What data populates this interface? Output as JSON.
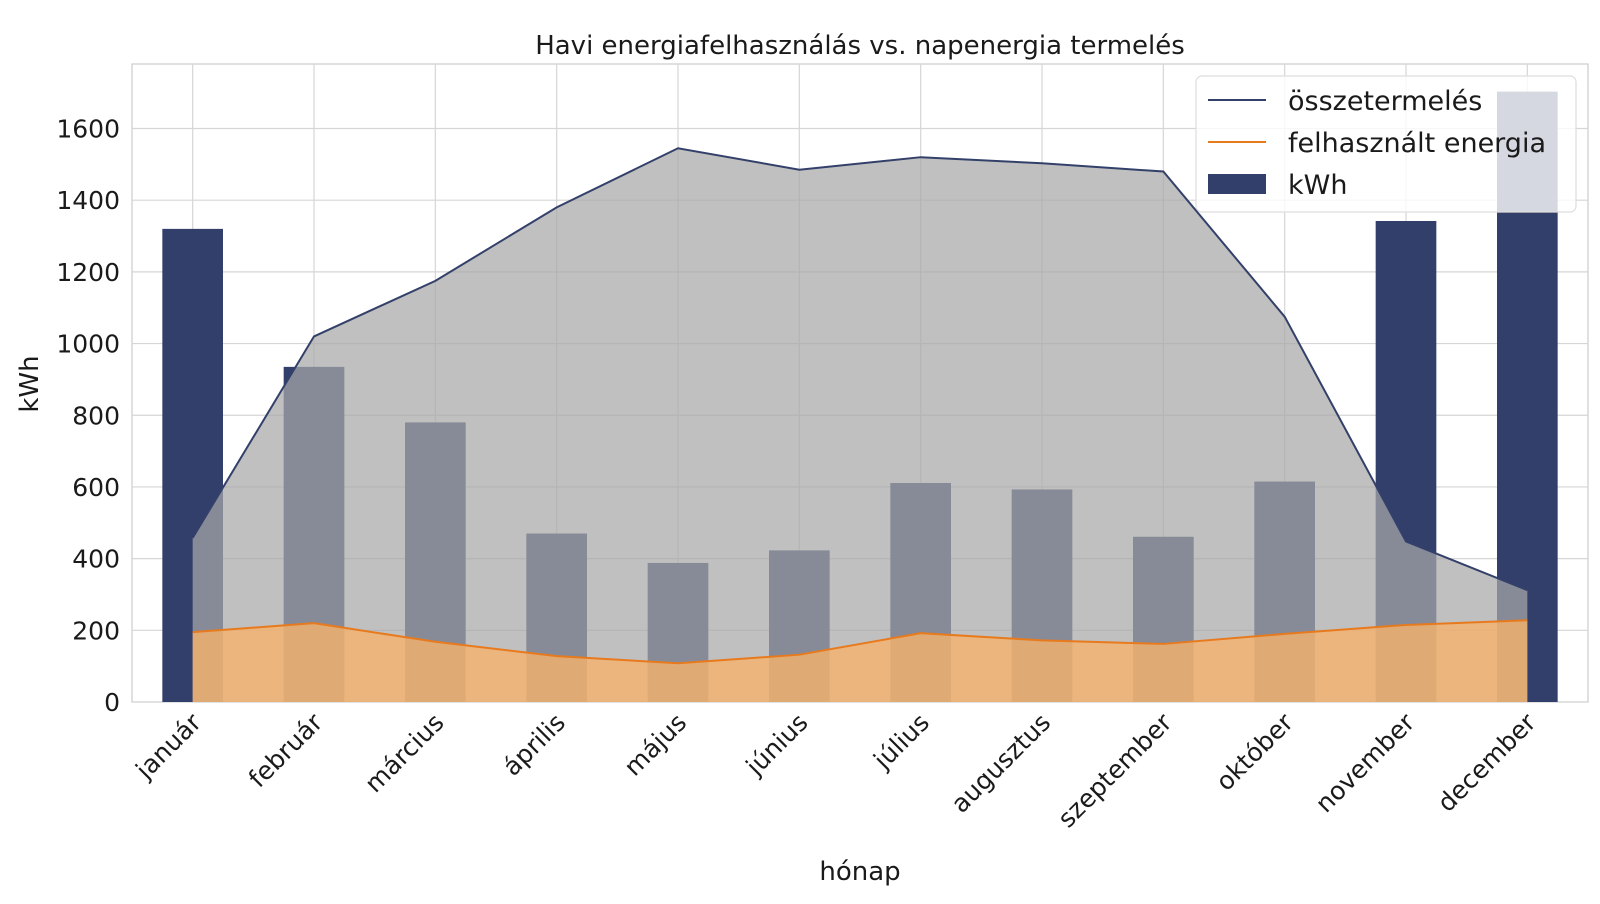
{
  "chart_data": {
    "type": "bar",
    "title": "Havi energiafelhasználás vs. napenergia termelés",
    "xlabel": "hónap",
    "ylabel": "kWh",
    "ylim": [
      0,
      1780
    ],
    "yticks": [
      0,
      200,
      400,
      600,
      800,
      1000,
      1200,
      1400,
      1600
    ],
    "grid": true,
    "legend_position": "top-right",
    "categories": [
      "január",
      "február",
      "március",
      "április",
      "május",
      "június",
      "július",
      "augusztus",
      "szeptember",
      "október",
      "november",
      "december"
    ],
    "series": [
      {
        "name": "kWh",
        "kind": "bar",
        "color": "#333f6b",
        "values": [
          1320,
          935,
          780,
          470,
          388,
          423,
          611,
          593,
          461,
          615,
          1342,
          1703
        ]
      },
      {
        "name": "összetermelés",
        "kind": "area-line",
        "color": "#33406a",
        "fill": "#a8a8a8",
        "values": [
          458,
          1020,
          1175,
          1380,
          1545,
          1485,
          1520,
          1503,
          1480,
          1075,
          448,
          312
        ]
      },
      {
        "name": "felhasznált energia",
        "kind": "area-line",
        "color": "#e87a1e",
        "fill": "#f5b26b",
        "values": [
          195,
          220,
          168,
          128,
          108,
          132,
          192,
          172,
          162,
          190,
          215,
          228
        ]
      }
    ],
    "legend": [
      "összetermelés",
      "felhasznált energia",
      "kWh"
    ]
  }
}
